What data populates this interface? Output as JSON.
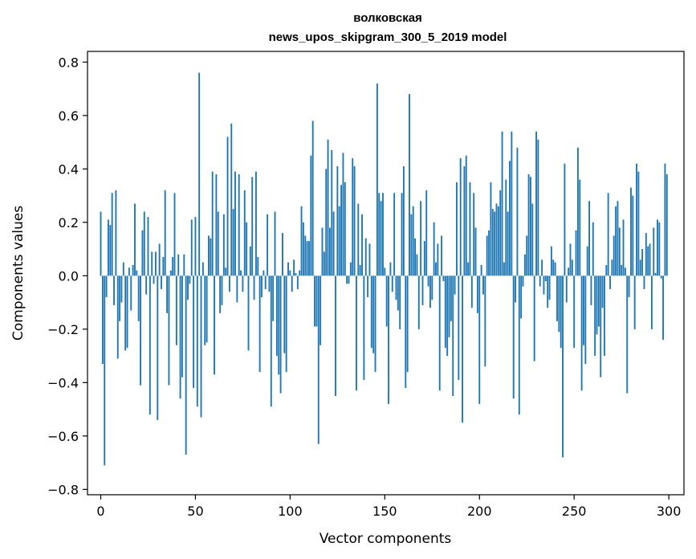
{
  "chart_data": {
    "type": "bar",
    "title": "волковская",
    "subtitle": "news_upos_skipgram_300_5_2019 model",
    "xlabel": "Vector components",
    "ylabel": "Components values",
    "xlim": [
      -7,
      308
    ],
    "ylim": [
      -0.82,
      0.84
    ],
    "xticks": [
      0,
      50,
      100,
      150,
      200,
      250,
      300
    ],
    "yticks": [
      0.8,
      0.6,
      0.4,
      0.2,
      0.0,
      -0.2,
      -0.4,
      -0.6,
      -0.8
    ],
    "ytick_labels": [
      "0.8",
      "0.6",
      "0.4",
      "0.2",
      "0.0",
      "−0.2",
      "−0.4",
      "−0.6",
      "−0.8"
    ],
    "bar_color": "#1f77b4",
    "grid": false,
    "x": "indices 0..299",
    "values": [
      0.24,
      -0.33,
      -0.71,
      -0.08,
      0.21,
      0.19,
      0.31,
      -0.11,
      0.32,
      -0.31,
      -0.17,
      -0.1,
      0.05,
      -0.28,
      -0.27,
      0.03,
      -0.13,
      0.04,
      0.27,
      0.02,
      -0.17,
      -0.41,
      0.17,
      0.24,
      -0.07,
      0.22,
      -0.52,
      0.09,
      -0.03,
      0.09,
      -0.54,
      0.12,
      -0.05,
      0.07,
      0.32,
      -0.14,
      -0.41,
      0.02,
      0.07,
      0.31,
      -0.26,
      0.08,
      -0.46,
      -0.38,
      0.08,
      -0.67,
      -0.09,
      -0.03,
      0.21,
      -0.42,
      0.22,
      -0.49,
      0.76,
      -0.53,
      0.05,
      -0.26,
      -0.25,
      0.15,
      0.14,
      0.39,
      -0.37,
      0.38,
      0.24,
      -0.14,
      -0.11,
      0.23,
      0.03,
      0.52,
      -0.06,
      0.57,
      0.25,
      0.39,
      -0.1,
      0.38,
      0.02,
      -0.06,
      0.32,
      0.2,
      -0.28,
      0.11,
      0.37,
      -0.09,
      0.39,
      0.07,
      -0.36,
      -0.08,
      0.02,
      -0.05,
      0.23,
      -0.06,
      -0.49,
      -0.17,
      0.24,
      -0.3,
      -0.37,
      -0.44,
      0.16,
      -0.29,
      -0.36,
      0.05,
      0.02,
      -0.06,
      0.06,
      0.01,
      -0.05,
      0.02,
      0.26,
      0.2,
      0.15,
      0.13,
      0.13,
      0.45,
      0.58,
      -0.19,
      -0.19,
      -0.63,
      -0.26,
      0.18,
      0.09,
      0.4,
      0.51,
      0.18,
      0.47,
      0.24,
      -0.45,
      0.41,
      0.26,
      0.34,
      0.46,
      0.35,
      -0.03,
      -0.03,
      0.05,
      0.44,
      0.41,
      -0.43,
      0.27,
      0.04,
      0.23,
      -0.39,
      0.14,
      -0.08,
      0.12,
      -0.27,
      -0.29,
      -0.36,
      0.72,
      0.31,
      0.28,
      0.31,
      0.03,
      -0.19,
      -0.48,
      0.05,
      -0.06,
      0.31,
      -0.09,
      -0.13,
      -0.2,
      0.31,
      0.41,
      -0.42,
      -0.36,
      0.68,
      0.23,
      0.26,
      0.14,
      0.08,
      -0.2,
      0.28,
      -0.11,
      0.13,
      0.32,
      -0.04,
      -0.12,
      -0.09,
      0.2,
      0.05,
      0.12,
      -0.43,
      0.15,
      -0.02,
      -0.27,
      -0.3,
      -0.23,
      -0.17,
      -0.45,
      -0.07,
      0.35,
      -0.39,
      0.44,
      -0.55,
      0.41,
      0.45,
      0.05,
      0.35,
      -0.12,
      0.31,
      0.18,
      -0.14,
      -0.48,
      0.04,
      -0.07,
      -0.34,
      0.15,
      0.17,
      0.35,
      0.25,
      0.24,
      0.27,
      0.26,
      0.32,
      0.54,
      0.05,
      0.36,
      0.24,
      0.43,
      0.54,
      -0.46,
      -0.1,
      0.48,
      -0.52,
      -0.16,
      -0.04,
      0.08,
      0.15,
      0.38,
      0.37,
      0.27,
      -0.32,
      0.54,
      0.51,
      -0.04,
      0.06,
      -0.07,
      -0.02,
      -0.12,
      -0.09,
      0.11,
      0.06,
      0.05,
      -0.17,
      -0.21,
      -0.27,
      -0.68,
      0.42,
      -0.1,
      0.03,
      0.12,
      0.06,
      -0.27,
      0.17,
      0.48,
      0.36,
      -0.43,
      -0.26,
      -0.33,
      0.11,
      0.28,
      -0.11,
      0.2,
      -0.3,
      -0.22,
      -0.19,
      -0.38,
      -0.12,
      -0.3,
      0.04,
      0.31,
      -0.05,
      0.06,
      0.15,
      0.26,
      0.28,
      0.18,
      0.04,
      0.21,
      0.03,
      -0.44,
      -0.08,
      0.33,
      0.3,
      -0.2,
      0.42,
      0.39,
      0.06,
      0.1,
      -0.05,
      0.16,
      0.11,
      0.12,
      -0.2,
      0.18,
      0.01,
      0.21,
      0.2,
      -0.01,
      -0.24,
      0.42,
      0.38
    ]
  }
}
